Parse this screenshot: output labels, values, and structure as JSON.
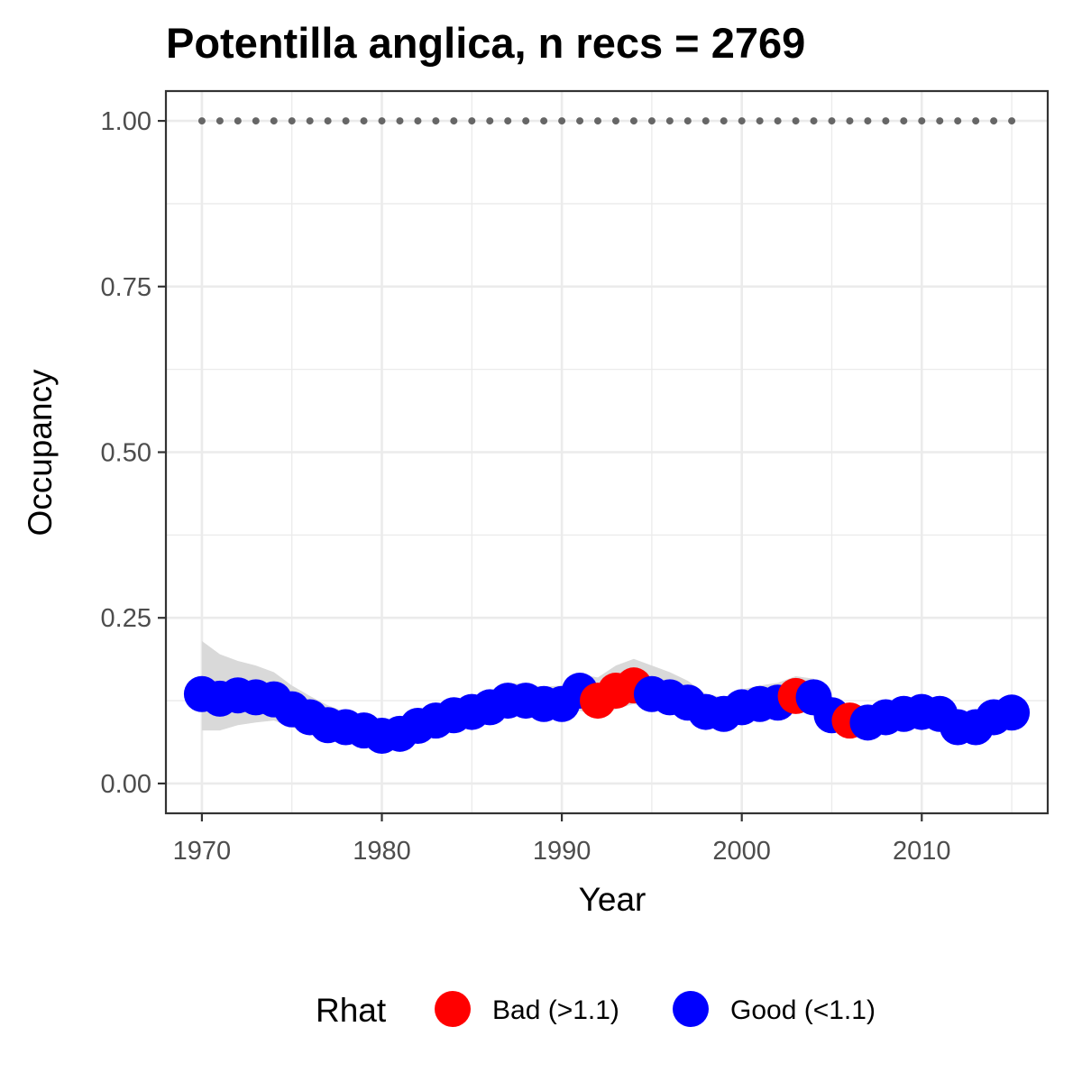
{
  "chart_data": {
    "type": "scatter",
    "title": "Potentilla anglica, n recs = 2769",
    "xlabel": "Year",
    "ylabel": "Occupancy",
    "xlim": [
      1968,
      2017
    ],
    "ylim": [
      -0.045,
      1.045
    ],
    "x_ticks": [
      1970,
      1980,
      1990,
      2000,
      2010
    ],
    "x_tick_labels": [
      "1970",
      "1980",
      "1990",
      "2000",
      "2010"
    ],
    "y_ticks": [
      0,
      0.25,
      0.5,
      0.75,
      1.0
    ],
    "y_tick_labels": [
      "0.00",
      "0.25",
      "0.50",
      "0.75",
      "1.00"
    ],
    "grid": true,
    "legend": {
      "title": "Rhat",
      "position": "bottom",
      "entries": [
        {
          "key": "bad",
          "label": "Bad (>1.1)",
          "color": "#ff0000"
        },
        {
          "key": "good",
          "label": "Good (<1.1)",
          "color": "#0000ff"
        }
      ]
    },
    "reference_line": {
      "y": 1.0,
      "style": "dotted",
      "color": "#666666"
    },
    "ribbon_color": "#d9d9d9",
    "points": [
      {
        "x": 1970,
        "y": 0.135,
        "lower": 0.08,
        "upper": 0.215,
        "rhat": "good"
      },
      {
        "x": 1971,
        "y": 0.128,
        "lower": 0.08,
        "upper": 0.195,
        "rhat": "good"
      },
      {
        "x": 1972,
        "y": 0.133,
        "lower": 0.088,
        "upper": 0.185,
        "rhat": "good"
      },
      {
        "x": 1973,
        "y": 0.13,
        "lower": 0.092,
        "upper": 0.178,
        "rhat": "good"
      },
      {
        "x": 1974,
        "y": 0.127,
        "lower": 0.095,
        "upper": 0.168,
        "rhat": "good"
      },
      {
        "x": 1975,
        "y": 0.112,
        "lower": 0.085,
        "upper": 0.148,
        "rhat": "good"
      },
      {
        "x": 1976,
        "y": 0.1,
        "lower": 0.075,
        "upper": 0.132,
        "rhat": "good"
      },
      {
        "x": 1977,
        "y": 0.088,
        "lower": 0.068,
        "upper": 0.118,
        "rhat": "good"
      },
      {
        "x": 1978,
        "y": 0.085,
        "lower": 0.064,
        "upper": 0.108,
        "rhat": "good"
      },
      {
        "x": 1979,
        "y": 0.08,
        "lower": 0.06,
        "upper": 0.102,
        "rhat": "good"
      },
      {
        "x": 1980,
        "y": 0.072,
        "lower": 0.056,
        "upper": 0.094,
        "rhat": "good"
      },
      {
        "x": 1981,
        "y": 0.075,
        "lower": 0.058,
        "upper": 0.098,
        "rhat": "good"
      },
      {
        "x": 1982,
        "y": 0.087,
        "lower": 0.066,
        "upper": 0.108,
        "rhat": "good"
      },
      {
        "x": 1983,
        "y": 0.095,
        "lower": 0.074,
        "upper": 0.118,
        "rhat": "good"
      },
      {
        "x": 1984,
        "y": 0.103,
        "lower": 0.082,
        "upper": 0.125,
        "rhat": "good"
      },
      {
        "x": 1985,
        "y": 0.108,
        "lower": 0.088,
        "upper": 0.132,
        "rhat": "good"
      },
      {
        "x": 1986,
        "y": 0.115,
        "lower": 0.094,
        "upper": 0.14,
        "rhat": "good"
      },
      {
        "x": 1987,
        "y": 0.125,
        "lower": 0.104,
        "upper": 0.152,
        "rhat": "good"
      },
      {
        "x": 1988,
        "y": 0.125,
        "lower": 0.102,
        "upper": 0.15,
        "rhat": "good"
      },
      {
        "x": 1989,
        "y": 0.12,
        "lower": 0.098,
        "upper": 0.146,
        "rhat": "good"
      },
      {
        "x": 1990,
        "y": 0.12,
        "lower": 0.096,
        "upper": 0.148,
        "rhat": "good"
      },
      {
        "x": 1991,
        "y": 0.14,
        "lower": 0.11,
        "upper": 0.165,
        "rhat": "good"
      },
      {
        "x": 1992,
        "y": 0.125,
        "lower": 0.1,
        "upper": 0.16,
        "rhat": "bad"
      },
      {
        "x": 1993,
        "y": 0.14,
        "lower": 0.112,
        "upper": 0.178,
        "rhat": "bad"
      },
      {
        "x": 1994,
        "y": 0.148,
        "lower": 0.12,
        "upper": 0.188,
        "rhat": "bad"
      },
      {
        "x": 1995,
        "y": 0.135,
        "lower": 0.112,
        "upper": 0.178,
        "rhat": "good"
      },
      {
        "x": 1996,
        "y": 0.13,
        "lower": 0.108,
        "upper": 0.168,
        "rhat": "good"
      },
      {
        "x": 1997,
        "y": 0.122,
        "lower": 0.1,
        "upper": 0.155,
        "rhat": "good"
      },
      {
        "x": 1998,
        "y": 0.108,
        "lower": 0.088,
        "upper": 0.135,
        "rhat": "good"
      },
      {
        "x": 1999,
        "y": 0.105,
        "lower": 0.086,
        "upper": 0.13,
        "rhat": "good"
      },
      {
        "x": 2000,
        "y": 0.115,
        "lower": 0.094,
        "upper": 0.142,
        "rhat": "good"
      },
      {
        "x": 2001,
        "y": 0.12,
        "lower": 0.098,
        "upper": 0.148,
        "rhat": "good"
      },
      {
        "x": 2002,
        "y": 0.122,
        "lower": 0.1,
        "upper": 0.152,
        "rhat": "good"
      },
      {
        "x": 2003,
        "y": 0.132,
        "lower": 0.108,
        "upper": 0.162,
        "rhat": "bad"
      },
      {
        "x": 2004,
        "y": 0.13,
        "lower": 0.106,
        "upper": 0.158,
        "rhat": "good"
      },
      {
        "x": 2005,
        "y": 0.103,
        "lower": 0.084,
        "upper": 0.128,
        "rhat": "good"
      },
      {
        "x": 2006,
        "y": 0.095,
        "lower": 0.076,
        "upper": 0.118,
        "rhat": "bad"
      },
      {
        "x": 2007,
        "y": 0.092,
        "lower": 0.074,
        "upper": 0.115,
        "rhat": "good"
      },
      {
        "x": 2008,
        "y": 0.1,
        "lower": 0.08,
        "upper": 0.122,
        "rhat": "good"
      },
      {
        "x": 2009,
        "y": 0.105,
        "lower": 0.085,
        "upper": 0.128,
        "rhat": "good"
      },
      {
        "x": 2010,
        "y": 0.108,
        "lower": 0.088,
        "upper": 0.132,
        "rhat": "good"
      },
      {
        "x": 2011,
        "y": 0.105,
        "lower": 0.085,
        "upper": 0.128,
        "rhat": "good"
      },
      {
        "x": 2012,
        "y": 0.085,
        "lower": 0.068,
        "upper": 0.105,
        "rhat": "good"
      },
      {
        "x": 2013,
        "y": 0.085,
        "lower": 0.068,
        "upper": 0.105,
        "rhat": "good"
      },
      {
        "x": 2014,
        "y": 0.1,
        "lower": 0.082,
        "upper": 0.122,
        "rhat": "good"
      },
      {
        "x": 2015,
        "y": 0.107,
        "lower": 0.088,
        "upper": 0.13,
        "rhat": "good"
      }
    ]
  }
}
